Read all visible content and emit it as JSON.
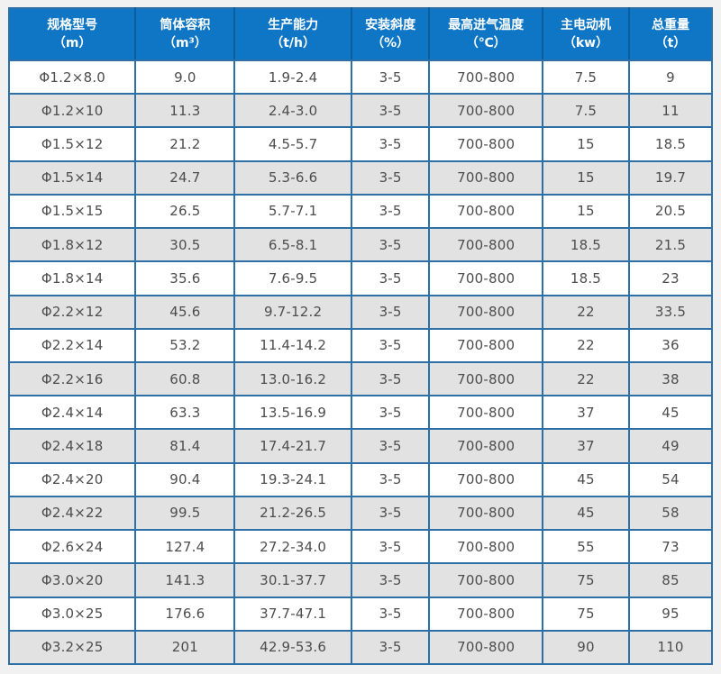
{
  "colors": {
    "header_bg": "#0e76c4",
    "header_divider": "#0a5e9f",
    "header_text": "#ffffff",
    "grid_border": "#2e6fa5",
    "row_bg": "#ffffff",
    "row_alt_bg": "#e2e2e2",
    "cell_text": "#4d4d4d",
    "page_bg": "#f1f1f1"
  },
  "table": {
    "columns": [
      {
        "name": "规格型号",
        "unit": "（m）"
      },
      {
        "name": "筒体容积",
        "unit": "（m³）"
      },
      {
        "name": "生产能力",
        "unit": "（t/h）"
      },
      {
        "name": "安装斜度",
        "unit": "（%）"
      },
      {
        "name": "最高进气温度",
        "unit": "（℃）"
      },
      {
        "name": "主电动机",
        "unit": "（kw）"
      },
      {
        "name": "总重量",
        "unit": "（t）"
      }
    ],
    "rows": [
      [
        "Φ1.2×8.0",
        "9.0",
        "1.9-2.4",
        "3-5",
        "700-800",
        "7.5",
        "9"
      ],
      [
        "Φ1.2×10",
        "11.3",
        "2.4-3.0",
        "3-5",
        "700-800",
        "7.5",
        "11"
      ],
      [
        "Φ1.5×12",
        "21.2",
        "4.5-5.7",
        "3-5",
        "700-800",
        "15",
        "18.5"
      ],
      [
        "Φ1.5×14",
        "24.7",
        "5.3-6.6",
        "3-5",
        "700-800",
        "15",
        "19.7"
      ],
      [
        "Φ1.5×15",
        "26.5",
        "5.7-7.1",
        "3-5",
        "700-800",
        "15",
        "20.5"
      ],
      [
        "Φ1.8×12",
        "30.5",
        "6.5-8.1",
        "3-5",
        "700-800",
        "18.5",
        "21.5"
      ],
      [
        "Φ1.8×14",
        "35.6",
        "7.6-9.5",
        "3-5",
        "700-800",
        "18.5",
        "23"
      ],
      [
        "Φ2.2×12",
        "45.6",
        "9.7-12.2",
        "3-5",
        "700-800",
        "22",
        "33.5"
      ],
      [
        "Φ2.2×14",
        "53.2",
        "11.4-14.2",
        "3-5",
        "700-800",
        "22",
        "36"
      ],
      [
        "Φ2.2×16",
        "60.8",
        "13.0-16.2",
        "3-5",
        "700-800",
        "22",
        "38"
      ],
      [
        "Φ2.4×14",
        "63.3",
        "13.5-16.9",
        "3-5",
        "700-800",
        "37",
        "45"
      ],
      [
        "Φ2.4×18",
        "81.4",
        "17.4-21.7",
        "3-5",
        "700-800",
        "37",
        "49"
      ],
      [
        "Φ2.4×20",
        "90.4",
        "19.3-24.1",
        "3-5",
        "700-800",
        "45",
        "54"
      ],
      [
        "Φ2.4×22",
        "99.5",
        "21.2-26.5",
        "3-5",
        "700-800",
        "45",
        "58"
      ],
      [
        "Φ2.6×24",
        "127.4",
        "27.2-34.0",
        "3-5",
        "700-800",
        "55",
        "73"
      ],
      [
        "Φ3.0×20",
        "141.3",
        "30.1-37.7",
        "3-5",
        "700-800",
        "75",
        "85"
      ],
      [
        "Φ3.0×25",
        "176.6",
        "37.7-47.1",
        "3-5",
        "700-800",
        "75",
        "95"
      ],
      [
        "Φ3.2×25",
        "201",
        "42.9-53.6",
        "3-5",
        "700-800",
        "90",
        "110"
      ]
    ]
  }
}
